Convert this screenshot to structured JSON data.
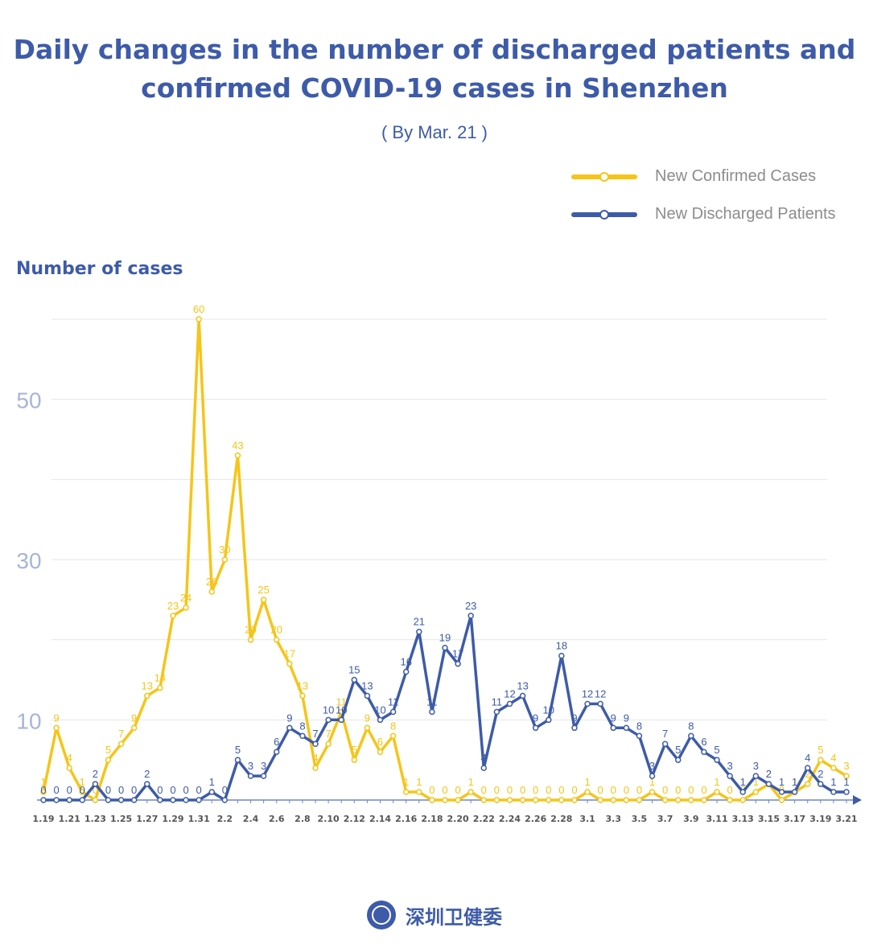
{
  "header": {
    "title_line1": "Daily changes in the number of discharged patients and",
    "title_line2": "confirmed COVID-19 cases in Shenzhen",
    "subtitle": "( By Mar. 21 )"
  },
  "legend": {
    "confirmed_label": "New Confirmed Cases",
    "discharged_label": "New Discharged Patients"
  },
  "footer": {
    "org_name": "深圳卫健委"
  },
  "colors": {
    "confirmed": "#f5c518",
    "discharged": "#3d5ba8",
    "grid": "#e6e6e6",
    "ytick": "#a9b4d6"
  },
  "chart_data": {
    "type": "line",
    "ylabel": "Number of cases",
    "ylim": [
      0,
      60
    ],
    "yticks": [
      10,
      30,
      50
    ],
    "x_tick_labels": [
      "1.19",
      "1.21",
      "1.23",
      "1.25",
      "1.27",
      "1.29",
      "1.31",
      "2.2",
      "2.4",
      "2.6",
      "2.8",
      "2.10",
      "2.12",
      "2.14",
      "2.16",
      "2.18",
      "2.20",
      "2.22",
      "2.24",
      "2.26",
      "2.28",
      "3.1",
      "3.3",
      "3.5",
      "3.7",
      "3.9",
      "3.11",
      "3.13",
      "3.15",
      "3.17",
      "3.19",
      "3.21"
    ],
    "x": [
      "1.19",
      "1.20",
      "1.21",
      "1.22",
      "1.23",
      "1.24",
      "1.25",
      "1.26",
      "1.27",
      "1.28",
      "1.29",
      "1.30",
      "1.31",
      "2.1",
      "2.2",
      "2.3",
      "2.4",
      "2.5",
      "2.6",
      "2.7",
      "2.8",
      "2.9",
      "2.10",
      "2.11",
      "2.12",
      "2.13",
      "2.14",
      "2.15",
      "2.16",
      "2.17",
      "2.18",
      "2.19",
      "2.20",
      "2.21",
      "2.22",
      "2.23",
      "2.24",
      "2.25",
      "2.26",
      "2.27",
      "2.28",
      "2.29",
      "3.1",
      "3.2",
      "3.3",
      "3.4",
      "3.5",
      "3.6",
      "3.7",
      "3.8",
      "3.9",
      "3.10",
      "3.11",
      "3.12",
      "3.13",
      "3.14",
      "3.15",
      "3.16",
      "3.17",
      "3.18",
      "3.19",
      "3.20",
      "3.21"
    ],
    "series": [
      {
        "name": "New Confirmed Cases",
        "values": [
          1,
          9,
          4,
          1,
          0,
          5,
          7,
          9,
          13,
          14,
          23,
          24,
          60,
          26,
          30,
          43,
          20,
          25,
          20,
          17,
          13,
          4,
          7,
          11,
          5,
          9,
          6,
          8,
          1,
          1,
          0,
          0,
          0,
          1,
          0,
          0,
          0,
          0,
          0,
          0,
          0,
          0,
          1,
          0,
          0,
          0,
          0,
          1,
          0,
          0,
          0,
          0,
          1,
          0,
          0,
          1,
          2,
          0,
          1,
          2,
          5,
          4,
          3
        ]
      },
      {
        "name": "New Discharged Patients",
        "values": [
          0,
          0,
          0,
          0,
          2,
          0,
          0,
          0,
          2,
          0,
          0,
          0,
          0,
          1,
          0,
          5,
          3,
          3,
          6,
          9,
          8,
          7,
          10,
          10,
          15,
          13,
          10,
          11,
          16,
          21,
          11,
          19,
          17,
          23,
          4,
          11,
          12,
          13,
          9,
          10,
          18,
          9,
          12,
          12,
          9,
          9,
          8,
          3,
          7,
          5,
          8,
          6,
          5,
          3,
          1,
          3,
          2,
          1,
          1,
          4,
          2,
          1,
          1
        ]
      }
    ]
  }
}
